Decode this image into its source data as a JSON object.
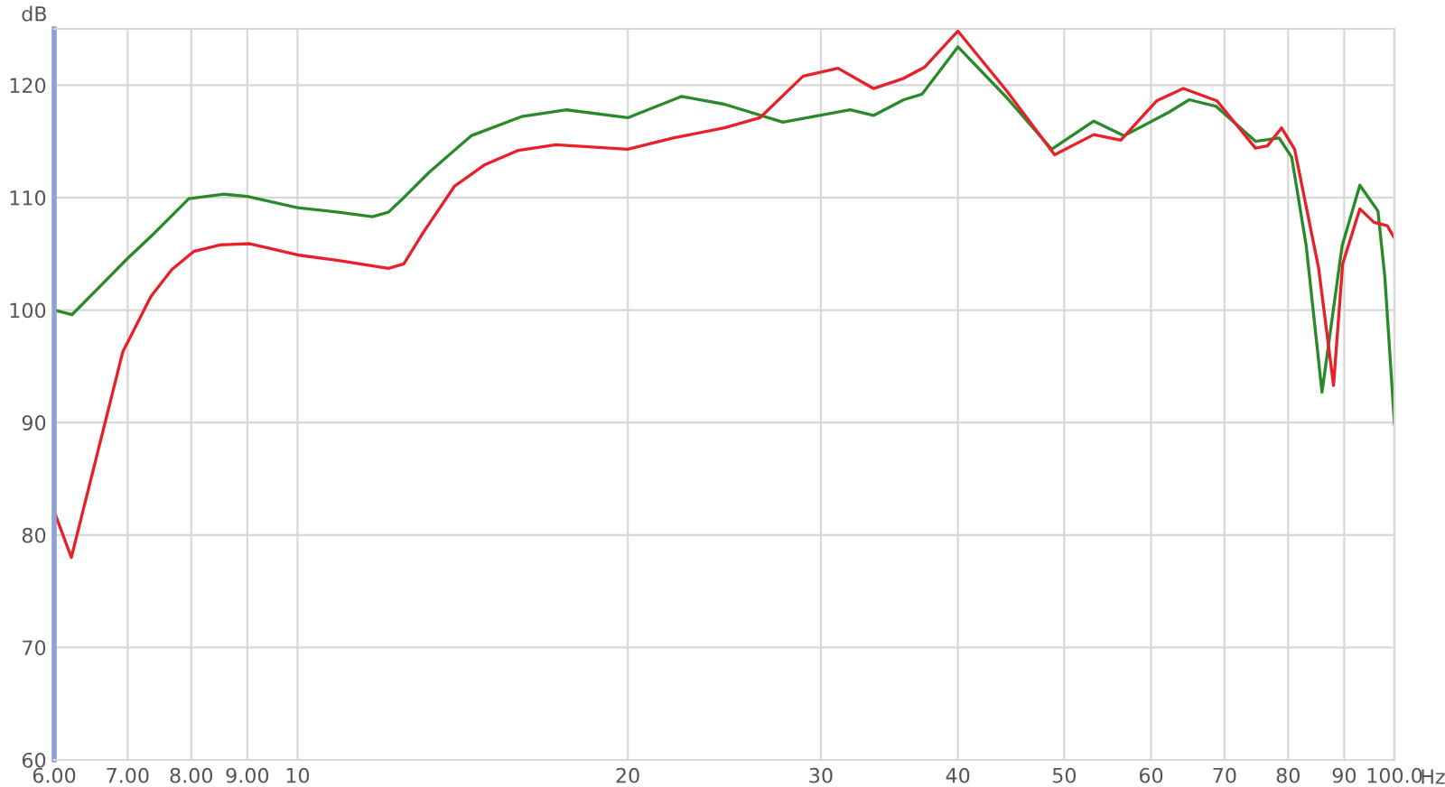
{
  "chart_data": {
    "type": "line",
    "ylabel": "dB",
    "xlabel": "Hz",
    "log": "x",
    "grid": true,
    "legend": false,
    "marker": "none",
    "line_style": "solid",
    "xlim": [
      6,
      100
    ],
    "ylim": [
      60,
      125
    ],
    "xticks": [
      {
        "value": 6,
        "label": "6.00"
      },
      {
        "value": 7,
        "label": "7.00"
      },
      {
        "value": 8,
        "label": "8.00"
      },
      {
        "value": 9,
        "label": "9.00"
      },
      10,
      20,
      30,
      40,
      50,
      60,
      70,
      80,
      90,
      {
        "value": 100,
        "label": "100.0"
      }
    ],
    "yticks": [
      60,
      70,
      80,
      90,
      100,
      110,
      120
    ],
    "series": [
      {
        "color": "#2a8a2a",
        "x": [
          6.0,
          6.23,
          6.59,
          7.0,
          7.38,
          7.96,
          8.57,
          9.0,
          10.0,
          10.9,
          11.7,
          12.1,
          12.5,
          13.2,
          14.4,
          16.0,
          17.6,
          20.0,
          22.4,
          24.5,
          27.7,
          31.9,
          33.5,
          35.7,
          37.1,
          40.0,
          44.3,
          48.7,
          53.2,
          56.7,
          62.3,
          65.0,
          68.8,
          74.7,
          78.5,
          80.6,
          83.1,
          85.9,
          89.6,
          93.0,
          96.6,
          98.0,
          100.0
        ],
        "values": [
          100.0,
          99.6,
          102.0,
          104.6,
          106.7,
          109.9,
          110.3,
          110.1,
          109.1,
          108.7,
          108.3,
          108.7,
          110.0,
          112.3,
          115.5,
          117.2,
          117.8,
          117.1,
          119.0,
          118.3,
          116.7,
          117.8,
          117.3,
          118.7,
          119.2,
          123.4,
          118.9,
          114.3,
          116.8,
          115.5,
          117.6,
          118.7,
          118.1,
          115.0,
          115.3,
          113.6,
          105.7,
          92.7,
          105.7,
          111.1,
          108.8,
          103.0,
          89.9
        ]
      },
      {
        "color": "#e8202a",
        "x": [
          6.0,
          6.22,
          6.93,
          7.35,
          7.68,
          8.04,
          8.5,
          9.05,
          10.0,
          10.9,
          12.1,
          12.5,
          13.0,
          13.9,
          14.8,
          15.9,
          17.2,
          20.0,
          22.0,
          24.5,
          26.4,
          28.9,
          31.1,
          33.5,
          35.7,
          37.3,
          40.0,
          44.3,
          49.0,
          53.2,
          56.3,
          60.7,
          64.2,
          68.9,
          74.7,
          76.6,
          78.9,
          81.1,
          85.3,
          88.0,
          89.7,
          93.0,
          95.8,
          98.5,
          100.0
        ],
        "values": [
          82.1,
          78.0,
          96.3,
          101.2,
          103.6,
          105.2,
          105.8,
          105.9,
          104.9,
          104.4,
          103.7,
          104.1,
          106.8,
          111.0,
          112.9,
          114.2,
          114.7,
          114.3,
          115.3,
          116.2,
          117.1,
          120.8,
          121.5,
          119.7,
          120.6,
          121.6,
          124.8,
          119.5,
          113.8,
          115.6,
          115.1,
          118.6,
          119.7,
          118.6,
          114.4,
          114.6,
          116.2,
          114.3,
          103.7,
          93.3,
          104.1,
          109.0,
          107.8,
          107.5,
          106.4
        ]
      }
    ]
  }
}
